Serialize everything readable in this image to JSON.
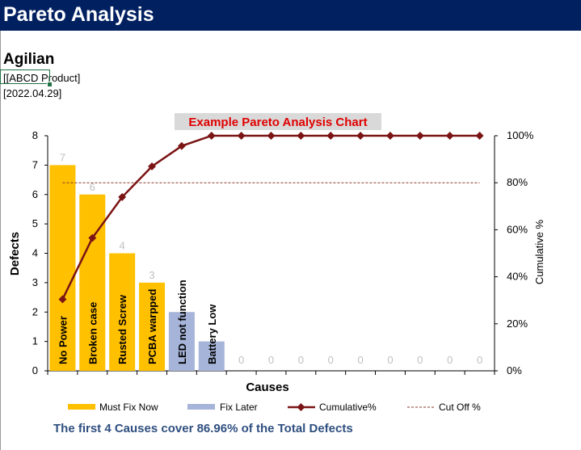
{
  "page": {
    "title": "Pareto Analysis",
    "company": "Agilian",
    "product": "[[ABCD Product]",
    "date": "[2022.04.29]"
  },
  "summary": "The first 4 Causes cover 86.96% of the Total Defects",
  "colors": {
    "title_bar": "#002060",
    "must_fix": "#ffc000",
    "fix_later": "#a5b4d8",
    "cumulative": "#7b1414",
    "cutoff": "#8b3a2a",
    "chart_title_text": "#e00000",
    "chart_title_bg": "#d9d9d9",
    "summary_text": "#2f4f7f"
  },
  "chart_data": {
    "type": "bar",
    "title": "Example Pareto Analysis Chart",
    "xlabel": "Causes",
    "ylabel": "Defects",
    "y2label": "Cumulative %",
    "ylim": [
      0,
      8
    ],
    "y2lim": [
      0,
      100
    ],
    "yticks": [
      "0",
      "1",
      "2",
      "3",
      "4",
      "5",
      "6",
      "7",
      "8"
    ],
    "y2ticks": [
      "0%",
      "20%",
      "40%",
      "60%",
      "80%",
      "100%"
    ],
    "categories": [
      "No Power",
      "Broken case",
      "Rusted Screw",
      "PCBA warpped",
      "LED not function",
      "Battery Low",
      "",
      "",
      "",
      "",
      "",
      "",
      "",
      "",
      ""
    ],
    "values": [
      7,
      6,
      4,
      3,
      2,
      1,
      0,
      0,
      0,
      0,
      0,
      0,
      0,
      0,
      0
    ],
    "value_labels": [
      "7",
      "6",
      "4",
      "3",
      "",
      "",
      "0",
      "0",
      "0",
      "0",
      "0",
      "0",
      "0",
      "0",
      "0"
    ],
    "group": [
      "must",
      "must",
      "must",
      "must",
      "later",
      "later",
      "none",
      "none",
      "none",
      "none",
      "none",
      "none",
      "none",
      "none",
      "none"
    ],
    "cumulative": [
      30.43,
      56.52,
      73.91,
      86.96,
      95.65,
      100,
      100,
      100,
      100,
      100,
      100,
      100,
      100,
      100,
      100
    ],
    "cutoff": 80,
    "grid": false,
    "legend_position": "bottom",
    "legend": [
      "Must Fix Now",
      "Fix Later",
      "Cumulative%",
      "Cut Off %"
    ]
  }
}
